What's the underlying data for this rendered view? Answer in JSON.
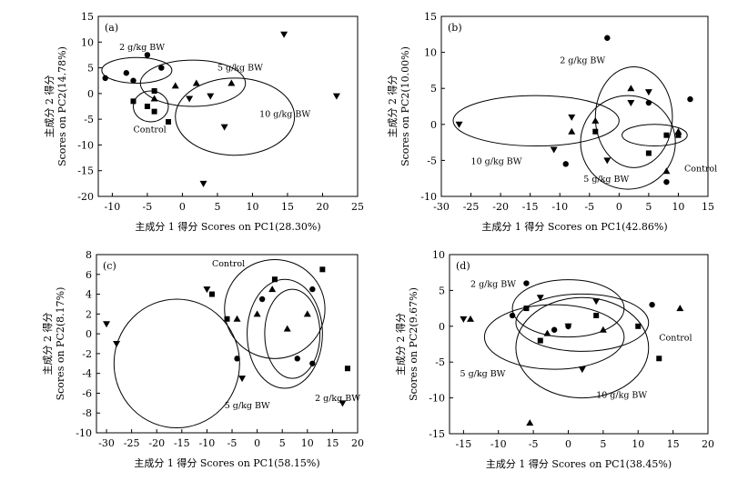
{
  "chart_data": [
    {
      "type": "scatter",
      "panel": "(a)",
      "xlabel": "主成分 1 得分 Scores on PC1(28.30%)",
      "ylabel_line1": "主成分 2 得分",
      "ylabel_line2": "Scores on PC2(14.78%)",
      "xlim": [
        -12,
        25
      ],
      "ylim": [
        -20,
        15
      ],
      "xticks": [
        -10,
        -5,
        0,
        5,
        10,
        15,
        20,
        25
      ],
      "yticks": [
        -20,
        -15,
        -10,
        -5,
        0,
        5,
        10,
        15
      ],
      "series": [
        {
          "name": "Control",
          "marker": "square",
          "points": [
            [
              -7,
              -1.5
            ],
            [
              -4,
              0.5
            ],
            [
              -5,
              -2.5
            ],
            [
              -4,
              -3.5
            ],
            [
              -2,
              -5.5
            ]
          ]
        },
        {
          "name": "2 g/kg BW",
          "marker": "circle",
          "points": [
            [
              -11,
              3
            ],
            [
              -8,
              4
            ],
            [
              -5,
              7.5
            ],
            [
              -3,
              5
            ],
            [
              -7,
              2.5
            ]
          ]
        },
        {
          "name": "5 g/kg BW",
          "marker": "triangle",
          "points": [
            [
              -4,
              -1
            ],
            [
              -1,
              1.5
            ],
            [
              2,
              2
            ],
            [
              7,
              2
            ]
          ]
        },
        {
          "name": "10 g/kg BW",
          "marker": "triangle-down",
          "points": [
            [
              1,
              -1
            ],
            [
              4,
              -0.5
            ],
            [
              6,
              -6.5
            ],
            [
              3,
              -17.5
            ],
            [
              14.5,
              11.5
            ],
            [
              22,
              -0.5
            ]
          ]
        }
      ],
      "annotations": [
        {
          "text": "2 g/kg BW",
          "x": -9,
          "y": 8.5
        },
        {
          "text": "5 g/kg BW",
          "x": 5,
          "y": 4.5
        },
        {
          "text": "10 g/kg BW",
          "x": 11,
          "y": -4.5
        },
        {
          "text": "Control",
          "x": -7,
          "y": -7.5
        }
      ],
      "ellipses": [
        {
          "group": "2 g/kg BW",
          "cx": -6.5,
          "cy": 4.5,
          "rx": 5,
          "ry": 2.5
        },
        {
          "group": "5 g/kg BW",
          "cx": 1.5,
          "cy": 2,
          "rx": 7.5,
          "ry": 4.5
        },
        {
          "group": "10 g/kg BW",
          "cx": 7.5,
          "cy": -4.5,
          "rx": 8.5,
          "ry": 7.5
        },
        {
          "group": "Control",
          "cx": -4.5,
          "cy": -2.5,
          "rx": 2.5,
          "ry": 3
        }
      ]
    },
    {
      "type": "scatter",
      "panel": "(b)",
      "xlabel": "主成分 1 得分 Scores on PC1(42.86%)",
      "ylabel_line1": "主成分 2 得分",
      "ylabel_line2": "Scores on PC2(10.00%)",
      "xlim": [
        -30,
        15
      ],
      "ylim": [
        -10,
        15
      ],
      "xticks": [
        -30,
        -25,
        -20,
        -15,
        -10,
        -5,
        0,
        5,
        10,
        15
      ],
      "yticks": [
        -10,
        -5,
        0,
        5,
        10,
        15
      ],
      "series": [
        {
          "name": "Control",
          "marker": "square",
          "points": [
            [
              -4,
              -1
            ],
            [
              5,
              -4
            ],
            [
              8,
              -1.5
            ],
            [
              10,
              -1.5
            ]
          ]
        },
        {
          "name": "2 g/kg BW",
          "marker": "circle",
          "points": [
            [
              -2,
              12
            ],
            [
              -9,
              -5.5
            ],
            [
              5,
              3
            ],
            [
              8,
              -8
            ],
            [
              12,
              3.5
            ]
          ]
        },
        {
          "name": "5 g/kg BW",
          "marker": "triangle",
          "points": [
            [
              -8,
              -1
            ],
            [
              -4,
              0.5
            ],
            [
              2,
              5
            ],
            [
              8,
              -6.5
            ],
            [
              10,
              -1
            ]
          ]
        },
        {
          "name": "10 g/kg BW",
          "marker": "triangle-down",
          "points": [
            [
              -27,
              0
            ],
            [
              -8,
              1
            ],
            [
              -11,
              -3.5
            ],
            [
              2,
              3
            ],
            [
              5,
              4.5
            ],
            [
              -2,
              -5
            ]
          ]
        }
      ],
      "annotations": [
        {
          "text": "2 g/kg BW",
          "x": -10,
          "y": 8.5
        },
        {
          "text": "10 g/kg BW",
          "x": -25,
          "y": -5.5
        },
        {
          "text": "5 g/kg BW",
          "x": -6,
          "y": -8
        },
        {
          "text": "Control",
          "x": 11,
          "y": -6.5
        }
      ],
      "ellipses": [
        {
          "group": "2 g/kg BW",
          "cx": 2.5,
          "cy": 1,
          "rx": 6.5,
          "ry": 7
        },
        {
          "group": "5 g/kg BW",
          "cx": 1.5,
          "cy": -2.5,
          "rx": 8,
          "ry": 6.5
        },
        {
          "group": "10 g/kg BW",
          "cx": -14,
          "cy": 0.5,
          "rx": 14,
          "ry": 3.5
        },
        {
          "group": "Control",
          "cx": 6,
          "cy": -1.5,
          "rx": 5.5,
          "ry": 1.5
        }
      ]
    },
    {
      "type": "scatter",
      "panel": "(c)",
      "xlabel": "主成分 1 得分 Scores on PC1(58.15%)",
      "ylabel_line1": "主成分 2 得分",
      "ylabel_line2": "Scores on PC2(8.17%)",
      "xlim": [
        -32,
        20
      ],
      "ylim": [
        -10,
        8
      ],
      "xticks": [
        -30,
        -25,
        -20,
        -15,
        -10,
        -5,
        0,
        5,
        10,
        15,
        20
      ],
      "yticks": [
        -10,
        -8,
        -6,
        -4,
        -2,
        0,
        2,
        4,
        6,
        8
      ],
      "series": [
        {
          "name": "Control",
          "marker": "square",
          "points": [
            [
              -9,
              4
            ],
            [
              -6,
              1.5
            ],
            [
              3.5,
              5.5
            ],
            [
              13,
              6.5
            ],
            [
              18,
              -3.5
            ]
          ]
        },
        {
          "name": "2 g/kg BW",
          "marker": "circle",
          "points": [
            [
              -4,
              -2.5
            ],
            [
              1,
              3.5
            ],
            [
              8,
              -2.5
            ],
            [
              11,
              4.5
            ],
            [
              11,
              -3
            ]
          ]
        },
        {
          "name": "5 g/kg BW",
          "marker": "triangle",
          "points": [
            [
              -4,
              1.5
            ],
            [
              3,
              4.5
            ],
            [
              6,
              0.5
            ],
            [
              10,
              2
            ],
            [
              0,
              2
            ]
          ]
        },
        {
          "name": "10 g/kg BW",
          "marker": "triangle-down",
          "points": [
            [
              -30,
              1
            ],
            [
              -28,
              -1
            ],
            [
              -10,
              4.5
            ],
            [
              -3,
              -4.5
            ],
            [
              17,
              -7
            ]
          ]
        }
      ],
      "annotations": [
        {
          "text": "Control",
          "x": -9,
          "y": 6.8
        },
        {
          "text": "5 g/kg BW",
          "x": -6.5,
          "y": -7.5
        },
        {
          "text": "2 g/kg BW",
          "x": 11.5,
          "y": -6.8
        }
      ],
      "ellipses": [
        {
          "group": "Control",
          "cx": 3.5,
          "cy": 2.5,
          "rx": 10,
          "ry": 5
        },
        {
          "group": "2 g/kg BW",
          "cx": 5.5,
          "cy": 0,
          "rx": 7.5,
          "ry": 5.5
        },
        {
          "group": "5 g/kg BW",
          "cx": 7,
          "cy": 0,
          "rx": 5.5,
          "ry": 4.5
        },
        {
          "group": "10 g/kg BW",
          "cx": -16,
          "cy": -3,
          "rx": 12.5,
          "ry": 6.5
        }
      ]
    },
    {
      "type": "scatter",
      "panel": "(d)",
      "xlabel": "主成分 1 得分 Scores on PC1(38.45%)",
      "ylabel_line1": "主成分 2 得分",
      "ylabel_line2": "Scores on PC2(9.67%)",
      "xlim": [
        -17,
        20
      ],
      "ylim": [
        -15,
        10
      ],
      "xticks": [
        -15,
        -10,
        -5,
        0,
        5,
        10,
        15,
        20
      ],
      "yticks": [
        -15,
        -10,
        -5,
        0,
        5,
        10
      ],
      "series": [
        {
          "name": "Control",
          "marker": "square",
          "points": [
            [
              -6,
              2.5
            ],
            [
              -4,
              -2
            ],
            [
              4,
              1.5
            ],
            [
              10,
              0
            ],
            [
              13,
              -4.5
            ]
          ]
        },
        {
          "name": "2 g/kg BW",
          "marker": "circle",
          "points": [
            [
              -6,
              6
            ],
            [
              -8,
              1.5
            ],
            [
              -2,
              -0.5
            ],
            [
              12,
              3
            ],
            [
              0,
              0
            ]
          ]
        },
        {
          "name": "5 g/kg BW",
          "marker": "triangle",
          "points": [
            [
              -14,
              1
            ],
            [
              -5.5,
              -13.5
            ],
            [
              -3,
              -1
            ],
            [
              5,
              -0.5
            ],
            [
              16,
              2.5
            ]
          ]
        },
        {
          "name": "10 g/kg BW",
          "marker": "triangle-down",
          "points": [
            [
              -15,
              1
            ],
            [
              0,
              0
            ],
            [
              2,
              -6
            ],
            [
              4,
              3.5
            ],
            [
              -4,
              4
            ]
          ]
        }
      ],
      "annotations": [
        {
          "text": "2 g/kg BW",
          "x": -14,
          "y": 5.5
        },
        {
          "text": "5 g/kg BW",
          "x": -15.5,
          "y": -7
        },
        {
          "text": "10 g/kg BW",
          "x": 4,
          "y": -10
        },
        {
          "text": "Control",
          "x": 13,
          "y": -2
        }
      ],
      "ellipses": [
        {
          "group": "2 g/kg BW",
          "cx": 0,
          "cy": 2.5,
          "rx": 8,
          "ry": 4
        },
        {
          "group": "Control",
          "cx": 2,
          "cy": 0.5,
          "rx": 9.5,
          "ry": 4
        },
        {
          "group": "5 g/kg BW",
          "cx": -2,
          "cy": -1.5,
          "rx": 10,
          "ry": 4.5
        },
        {
          "group": "10 g/kg BW",
          "cx": 2,
          "cy": -3,
          "rx": 9.5,
          "ry": 7
        }
      ]
    }
  ]
}
